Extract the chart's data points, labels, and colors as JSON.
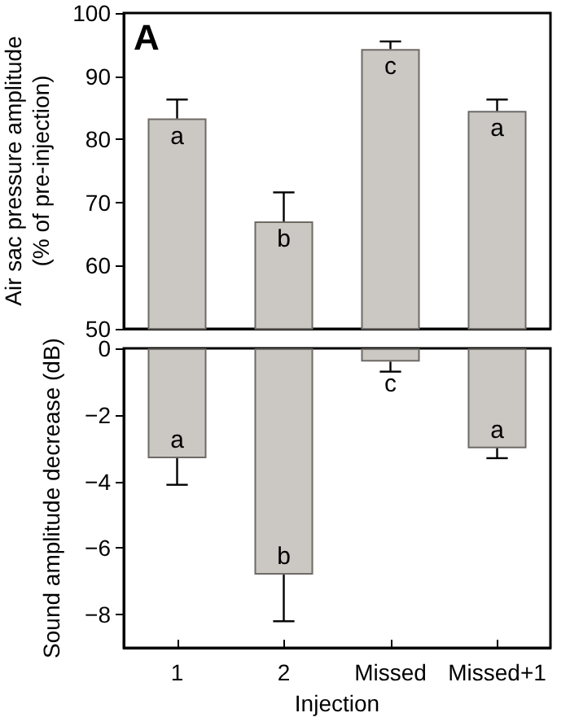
{
  "chart_data": [
    {
      "type": "bar",
      "ylabel": "Air sac pressure amplitude\n(% of pre-injection)",
      "categories": [
        "1",
        "2",
        "Missed",
        "Missed+1"
      ],
      "values": [
        83.3,
        67,
        94.3,
        84.5
      ],
      "color": "#cbc7c3",
      "errors": [
        [
          83.3,
          86.3
        ],
        [
          67,
          71.6
        ],
        [
          94.3,
          95.5
        ],
        [
          84.5,
          86.3
        ]
      ],
      "ylim": [
        50,
        100
      ],
      "yticks": [
        50,
        60,
        70,
        80,
        90,
        100
      ],
      "tick_labels": "y",
      "grid": false,
      "annotations": [
        "A",
        {
          "text": "a",
          "x": "1",
          "y": 83.3
        },
        {
          "text": "b",
          "x": "2",
          "y": 67
        },
        {
          "text": "c",
          "x": "Missed",
          "y": 94.3
        },
        {
          "text": "a",
          "x": "Missed+1",
          "y": 84.5
        }
      ]
    },
    {
      "type": "bar",
      "ylabel": "Sound amplitude decrease (dB)",
      "xlabel": "Injection",
      "categories": [
        "1",
        "2",
        "Missed",
        "Missed+1"
      ],
      "values": [
        -3.3,
        -6.8,
        -0.4,
        -3.0
      ],
      "color": "#cbc7c3",
      "errors": [
        [
          -4.1,
          -3.3
        ],
        [
          -8.2,
          -6.8
        ],
        [
          -0.7,
          -0.4
        ],
        [
          -3.3,
          -3.0
        ]
      ],
      "ylim": [
        -9,
        0
      ],
      "yticks": [
        0,
        {
          "value": -2,
          "label": "−2"
        },
        {
          "value": -4,
          "label": "−4"
        },
        {
          "value": -6,
          "label": "−6"
        },
        {
          "value": -8,
          "label": "−8"
        }
      ],
      "grid": false,
      "annotations": [
        {
          "text": "a",
          "x": "1",
          "y": -3.3
        },
        {
          "text": "b",
          "x": "2",
          "y": -6.8
        },
        {
          "text": "c",
          "x": "Missed",
          "y": -0.4
        },
        {
          "text": "a",
          "x": "Missed+1",
          "y": -3.0
        }
      ]
    }
  ]
}
